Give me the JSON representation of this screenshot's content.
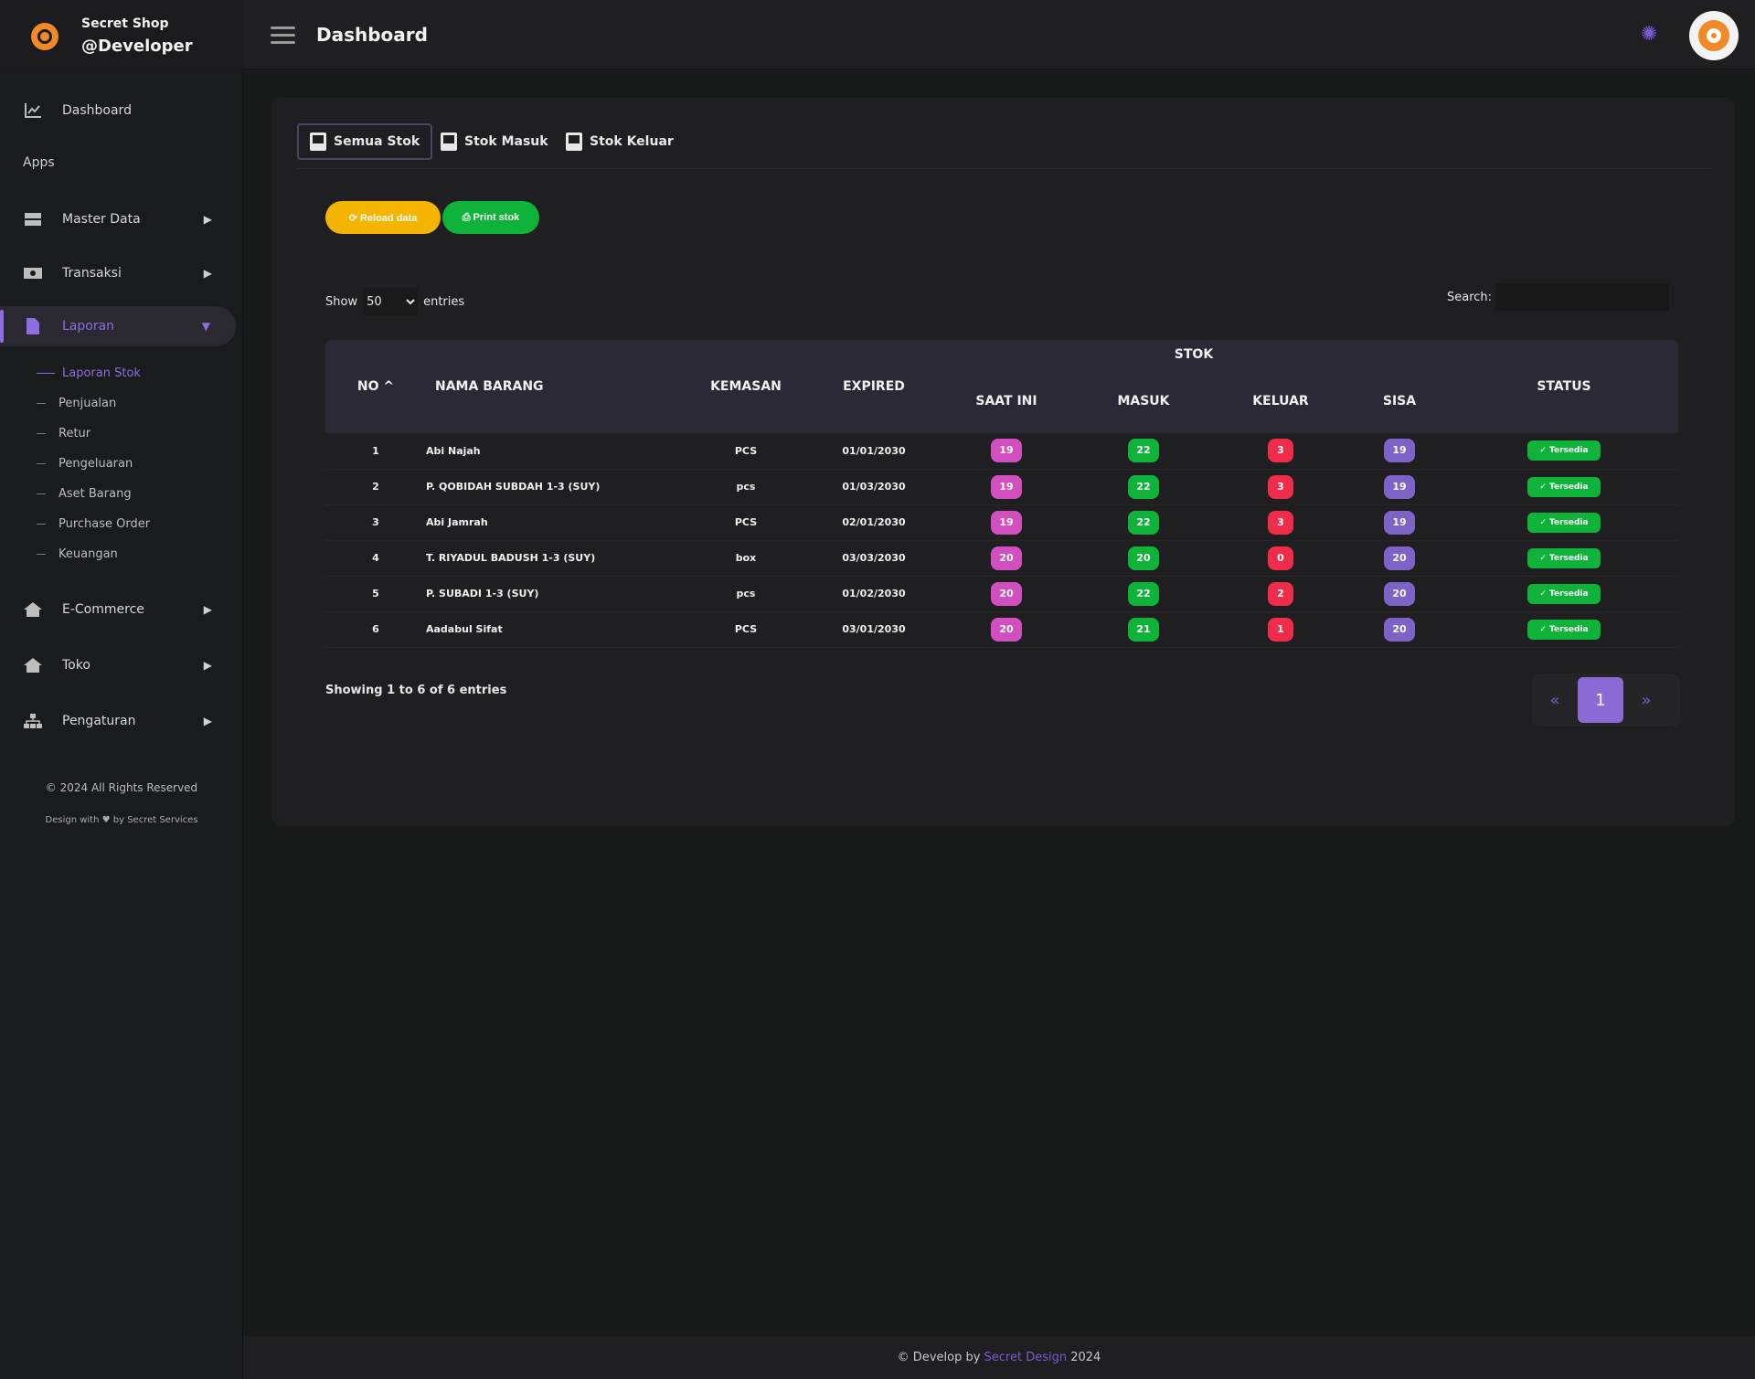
{
  "brand": {
    "name": "Secret Shop",
    "user": "@Developer"
  },
  "header": {
    "title": "Dashboard"
  },
  "sidebar": {
    "dashboard": "Dashboard",
    "heading": "Apps",
    "master_data": "Master Data",
    "transaksi": "Transaksi",
    "laporan": "Laporan",
    "sub": [
      "Laporan Stok",
      "Penjualan",
      "Retur",
      "Pengeluaran",
      "Aset Barang",
      "Purchase Order",
      "Keuangan"
    ],
    "ecommerce": "E-Commerce",
    "toko": "Toko",
    "pengaturan": "Pengaturan",
    "copyright": "© 2024 All Rights Reserved",
    "design": "Design with ♥ by Secret Services"
  },
  "tabs": [
    "Semua Stok",
    "Stok Masuk",
    "Stok Keluar"
  ],
  "buttons": {
    "reload": "⟳ Reload data",
    "print": "⎙ Print stok"
  },
  "table_controls": {
    "show": "Show",
    "entries_value": "50",
    "entries": "entries",
    "search": "Search:"
  },
  "table": {
    "headers": {
      "no": "NO ^",
      "nama": "NAMA BARANG",
      "kemasan": "KEMASAN",
      "expired": "EXPIRED",
      "stok": "STOK",
      "saat_ini": "SAAT INI",
      "masuk": "MASUK",
      "keluar": "KELUAR",
      "sisa": "SISA",
      "status": "STATUS"
    },
    "rows": [
      {
        "no": "1",
        "nama": "Abi Najah",
        "kemasan": "PCS",
        "expired": "01/01/2030",
        "saat_ini": "19",
        "masuk": "22",
        "keluar": "3",
        "sisa": "19",
        "status": "✓ Tersedia"
      },
      {
        "no": "2",
        "nama": "P. QOBIDAH SUBDAH 1-3 (SUY)",
        "kemasan": "pcs",
        "expired": "01/03/2030",
        "saat_ini": "19",
        "masuk": "22",
        "keluar": "3",
        "sisa": "19",
        "status": "✓ Tersedia"
      },
      {
        "no": "3",
        "nama": "Abi Jamrah",
        "kemasan": "PCS",
        "expired": "02/01/2030",
        "saat_ini": "19",
        "masuk": "22",
        "keluar": "3",
        "sisa": "19",
        "status": "✓ Tersedia"
      },
      {
        "no": "4",
        "nama": "T. RIYADUL BADUSH 1-3 (SUY)",
        "kemasan": "box",
        "expired": "03/03/2030",
        "saat_ini": "20",
        "masuk": "20",
        "keluar": "0",
        "sisa": "20",
        "status": "✓ Tersedia"
      },
      {
        "no": "5",
        "nama": "P. SUBADI 1-3 (SUY)",
        "kemasan": "pcs",
        "expired": "01/02/2030",
        "saat_ini": "20",
        "masuk": "22",
        "keluar": "2",
        "sisa": "20",
        "status": "✓ Tersedia"
      },
      {
        "no": "6",
        "nama": "Aadabul Sifat",
        "kemasan": "PCS",
        "expired": "03/01/2030",
        "saat_ini": "20",
        "masuk": "21",
        "keluar": "1",
        "sisa": "20",
        "status": "✓ Tersedia"
      }
    ],
    "info": "Showing 1 to 6 of 6 entries"
  },
  "pager": {
    "prev": "«",
    "current": "1",
    "next": "»"
  },
  "footer": {
    "prefix": "© Develop by ",
    "link": "Secret Design",
    "suffix": " 2024"
  },
  "colors": {
    "accent": "#7c5ad6",
    "brand": "#f08a28",
    "pink": "#d24fc0",
    "green": "#10b33a",
    "red": "#ef2c4c",
    "purple": "#7e63c6",
    "yellow": "#f4b400"
  }
}
